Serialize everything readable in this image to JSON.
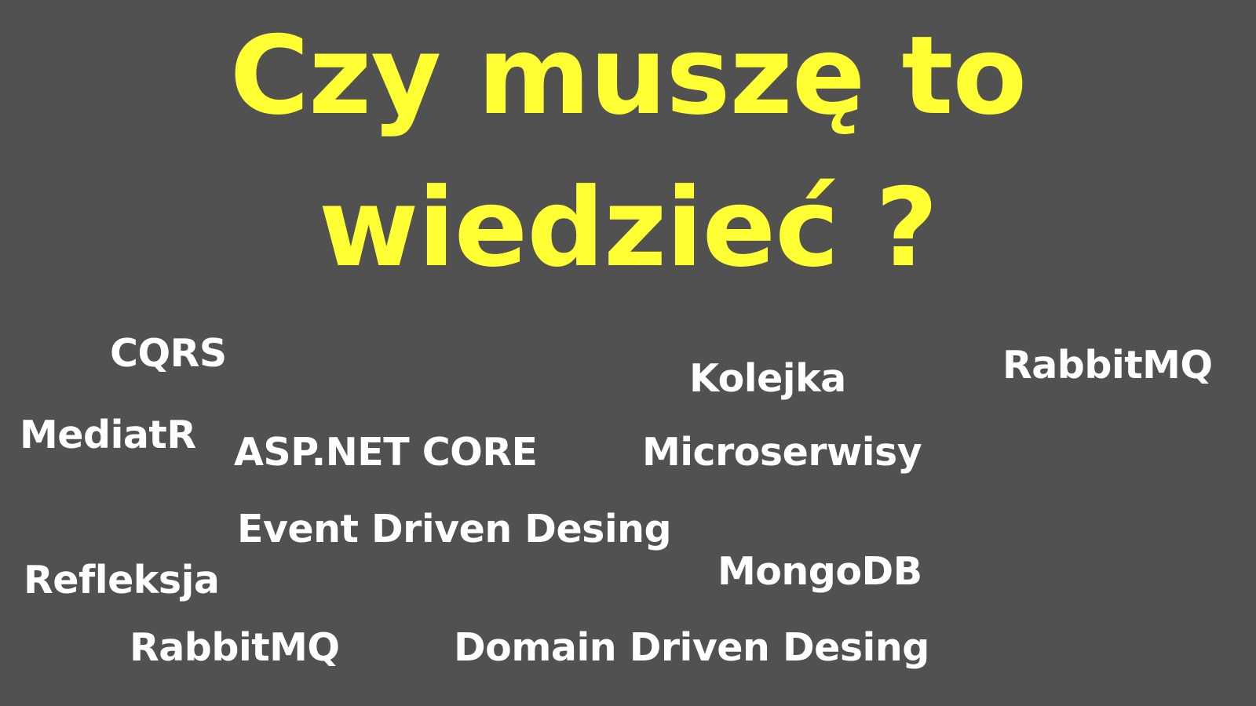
{
  "title": {
    "line1": "Czy muszę to",
    "line2": "wiedzieć ?"
  },
  "terms": [
    "CQRS",
    "Kolejka",
    "RabbitMQ",
    "MediatR",
    "ASP.NET CORE",
    "Microserwisy",
    "Event Driven Desing",
    "MongoDB",
    "Refleksja",
    "RabbitMQ",
    "Domain Driven Desing"
  ],
  "colors": {
    "background": "#515151",
    "title": "#ffff33",
    "terms": "#ffffff"
  }
}
